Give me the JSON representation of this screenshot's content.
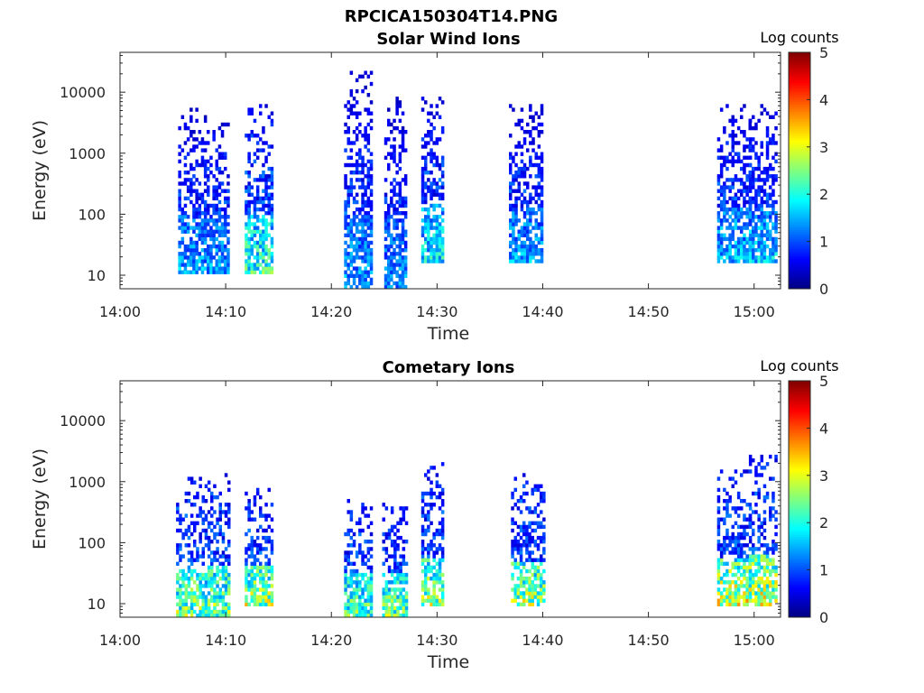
{
  "figure_title": "RPCICA150304T14.PNG",
  "chart_data": [
    {
      "type": "heatmap",
      "title": "Solar Wind Ions",
      "xlabel": "Time",
      "ylabel": "Energy (eV)",
      "x_ticks": [
        "14:00",
        "14:10",
        "14:20",
        "14:30",
        "14:40",
        "14:50",
        "15:00"
      ],
      "x_range_minutes": [
        0,
        62.5
      ],
      "y_ticks": [
        "10",
        "100",
        "1000",
        "10000"
      ],
      "y_range_eV": [
        6,
        45000
      ],
      "y_scale": "log",
      "colorbar": {
        "label": "Log counts",
        "ticks": [
          "0",
          "1",
          "2",
          "3",
          "4",
          "5"
        ],
        "range": [
          0,
          5
        ],
        "colormap": "jet"
      },
      "bursts": [
        {
          "t": [
            5.5,
            10.2
          ],
          "e": [
            10,
            5000
          ],
          "peak": 1.8
        },
        {
          "t": [
            11.8,
            14.3
          ],
          "e": [
            10,
            6000
          ],
          "peak": 2.6
        },
        {
          "t": [
            21.2,
            23.8
          ],
          "e": [
            6,
            20000
          ],
          "peak": 1.7
        },
        {
          "t": [
            25.0,
            27.0
          ],
          "e": [
            6,
            8000
          ],
          "peak": 1.6
        },
        {
          "t": [
            28.5,
            30.5
          ],
          "e": [
            15,
            8000
          ],
          "peak": 2.2
        },
        {
          "t": [
            36.8,
            39.8
          ],
          "e": [
            15,
            6000
          ],
          "peak": 1.8
        },
        {
          "t": [
            56.5,
            59.5
          ],
          "e": [
            15,
            6000
          ],
          "peak": 1.9
        },
        {
          "t": [
            59.5,
            62.2
          ],
          "e": [
            15,
            6000
          ],
          "peak": 2.0
        }
      ]
    },
    {
      "type": "heatmap",
      "title": "Cometary Ions",
      "xlabel": "Time",
      "ylabel": "Energy (eV)",
      "x_ticks": [
        "14:00",
        "14:10",
        "14:20",
        "14:30",
        "14:40",
        "14:50",
        "15:00"
      ],
      "x_range_minutes": [
        0,
        62.5
      ],
      "y_ticks": [
        "10",
        "100",
        "1000",
        "10000"
      ],
      "y_range_eV": [
        6,
        45000
      ],
      "y_scale": "log",
      "colorbar": {
        "label": "Log counts",
        "ticks": [
          "0",
          "1",
          "2",
          "3",
          "4",
          "5"
        ],
        "range": [
          0,
          5
        ],
        "colormap": "jet"
      },
      "bursts": [
        {
          "t": [
            5.3,
            10.2
          ],
          "e": [
            6,
            1300
          ],
          "peak": 3.0
        },
        {
          "t": [
            11.8,
            14.3
          ],
          "e": [
            8,
            700
          ],
          "peak": 3.3
        },
        {
          "t": [
            21.2,
            23.8
          ],
          "e": [
            6,
            500
          ],
          "peak": 2.8
        },
        {
          "t": [
            24.8,
            27.0
          ],
          "e": [
            6,
            500
          ],
          "peak": 2.9
        },
        {
          "t": [
            28.5,
            30.5
          ],
          "e": [
            8,
            2000
          ],
          "peak": 3.2
        },
        {
          "t": [
            37.0,
            40.0
          ],
          "e": [
            8,
            1200
          ],
          "peak": 3.3
        },
        {
          "t": [
            56.5,
            59.5
          ],
          "e": [
            8,
            1500
          ],
          "peak": 3.6
        },
        {
          "t": [
            59.5,
            62.2
          ],
          "e": [
            8,
            2500
          ],
          "peak": 3.5
        }
      ]
    }
  ]
}
